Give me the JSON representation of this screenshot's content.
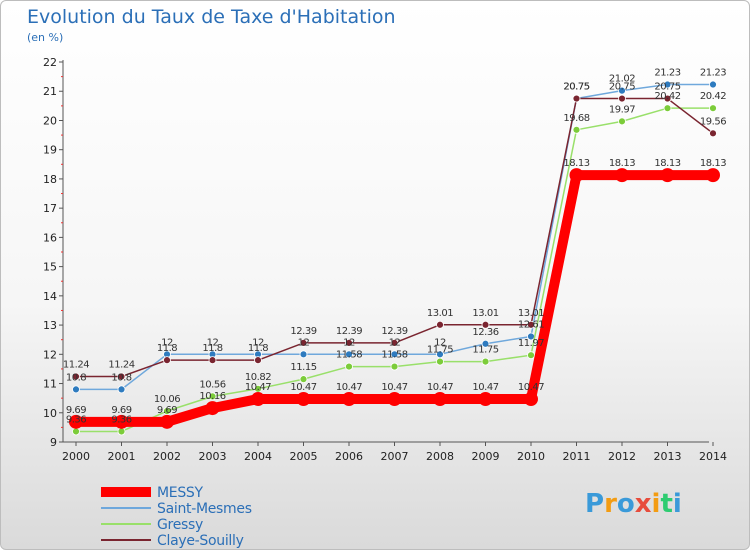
{
  "chart_data": {
    "type": "line",
    "title": "Evolution du Taux de Taxe d'Habitation",
    "ylabel": "(en %)",
    "categories": [
      "2000",
      "2001",
      "2002",
      "2003",
      "2004",
      "2005",
      "2006",
      "2007",
      "2008",
      "2009",
      "2010",
      "2011",
      "2012",
      "2013",
      "2014"
    ],
    "ylim": [
      9,
      22
    ],
    "yticks": [
      9,
      10,
      11,
      12,
      13,
      14,
      15,
      16,
      17,
      18,
      19,
      20,
      21,
      22
    ],
    "grid": false,
    "legend_position": "bottom-left",
    "series": [
      {
        "name": "MESSY",
        "color": "#ff0000",
        "values": [
          9.69,
          9.69,
          9.69,
          10.16,
          10.47,
          10.47,
          10.47,
          10.47,
          10.47,
          10.47,
          10.47,
          18.13,
          18.13,
          18.13,
          18.13
        ],
        "labels": [
          "9.69",
          "9.69",
          "9.69",
          "10.16",
          "10.47",
          "10.47",
          "10.47",
          "10.47",
          "10.47",
          "10.47",
          "10.47",
          "18.13",
          "18.13",
          "18.13",
          "18.13"
        ]
      },
      {
        "name": "Saint-Mesmes",
        "color": "#6fa8dc",
        "values": [
          10.8,
          10.8,
          12,
          12,
          12,
          12,
          12,
          12,
          12,
          12.36,
          12.61,
          20.75,
          21.02,
          21.23,
          21.23
        ],
        "labels": [
          "10.8",
          "10.8",
          "12",
          "12",
          "12",
          "12",
          "12",
          "12",
          "12",
          "12.36",
          "12.61",
          "20.75",
          "21.02",
          "21.23",
          "21.23"
        ]
      },
      {
        "name": "Gressy",
        "color": "#99e06a",
        "values": [
          9.36,
          9.36,
          10.06,
          10.56,
          10.82,
          11.15,
          11.58,
          11.58,
          11.75,
          11.75,
          11.97,
          19.68,
          19.97,
          20.42,
          20.42
        ],
        "labels": [
          "9.36",
          "9.36",
          "10.06",
          "10.56",
          "10.82",
          "11.15",
          "11.58",
          "11.58",
          "11.75",
          "11.75",
          "11.97",
          "19.68",
          "19.97",
          "20.42",
          "20.42"
        ]
      },
      {
        "name": "Claye-Souilly",
        "color": "#7a2530",
        "values": [
          11.24,
          11.24,
          11.8,
          11.8,
          11.8,
          12.39,
          12.39,
          12.39,
          13.01,
          13.01,
          13.01,
          20.75,
          20.75,
          20.75,
          19.56
        ],
        "labels": [
          "11.24",
          "11.24",
          "11.8",
          "11.8",
          "11.8",
          "12.39",
          "12.39",
          "12.39",
          "13.01",
          "13.01",
          "13.01",
          "20.75",
          "20.75",
          "20.75",
          "19.56"
        ]
      }
    ]
  },
  "logo": {
    "text": "Proxiti",
    "letters": [
      "P",
      "r",
      "o",
      "x",
      "i",
      "t",
      "i"
    ],
    "colors": [
      "#3a9ad9",
      "#f39c12",
      "#3a9ad9",
      "#e74c3c",
      "#f39c12",
      "#2ecc71",
      "#3a9ad9"
    ]
  }
}
